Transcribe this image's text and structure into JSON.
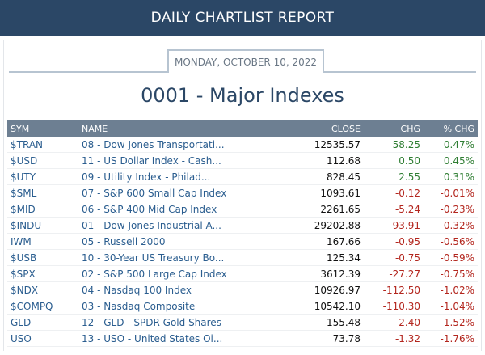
{
  "header": {
    "title": "DAILY CHARTLIST REPORT"
  },
  "report": {
    "date": "MONDAY, OCTOBER 10, 2022",
    "title": "0001 - Major Indexes"
  },
  "table": {
    "columns": {
      "sym": "SYM",
      "name": "NAME",
      "close": "CLOSE",
      "chg": "CHG",
      "pct": "% CHG"
    },
    "rows": [
      {
        "sym": "$TRAN",
        "name": "08 - Dow Jones Transportati...",
        "close": "12535.57",
        "chg": "58.25",
        "pct": "0.47%",
        "dir": "pos"
      },
      {
        "sym": "$USD",
        "name": "11 - US Dollar Index - Cash...",
        "close": "112.68",
        "chg": "0.50",
        "pct": "0.45%",
        "dir": "pos"
      },
      {
        "sym": "$UTY",
        "name": "09 - Utility Index - Philad...",
        "close": "828.45",
        "chg": "2.55",
        "pct": "0.31%",
        "dir": "pos"
      },
      {
        "sym": "$SML",
        "name": "07 - S&P 600 Small Cap Index",
        "close": "1093.61",
        "chg": "-0.12",
        "pct": "-0.01%",
        "dir": "neg"
      },
      {
        "sym": "$MID",
        "name": "06 - S&P 400 Mid Cap Index",
        "close": "2261.65",
        "chg": "-5.24",
        "pct": "-0.23%",
        "dir": "neg"
      },
      {
        "sym": "$INDU",
        "name": "01 - Dow Jones Industrial A...",
        "close": "29202.88",
        "chg": "-93.91",
        "pct": "-0.32%",
        "dir": "neg"
      },
      {
        "sym": "IWM",
        "name": "05 - Russell 2000",
        "close": "167.66",
        "chg": "-0.95",
        "pct": "-0.56%",
        "dir": "neg"
      },
      {
        "sym": "$USB",
        "name": "10 - 30-Year US Treasury Bo...",
        "close": "125.34",
        "chg": "-0.75",
        "pct": "-0.59%",
        "dir": "neg"
      },
      {
        "sym": "$SPX",
        "name": "02 - S&P 500 Large Cap Index",
        "close": "3612.39",
        "chg": "-27.27",
        "pct": "-0.75%",
        "dir": "neg"
      },
      {
        "sym": "$NDX",
        "name": "04 - Nasdaq 100 Index",
        "close": "10926.97",
        "chg": "-112.50",
        "pct": "-1.02%",
        "dir": "neg"
      },
      {
        "sym": "$COMPQ",
        "name": "03 - Nasdaq Composite",
        "close": "10542.10",
        "chg": "-110.30",
        "pct": "-1.04%",
        "dir": "neg"
      },
      {
        "sym": "GLD",
        "name": "12 - GLD - SPDR Gold Shares",
        "close": "155.48",
        "chg": "-2.40",
        "pct": "-1.52%",
        "dir": "neg"
      },
      {
        "sym": "USO",
        "name": "13 - USO - United States Oi...",
        "close": "73.78",
        "chg": "-1.32",
        "pct": "-1.76%",
        "dir": "neg"
      }
    ]
  }
}
